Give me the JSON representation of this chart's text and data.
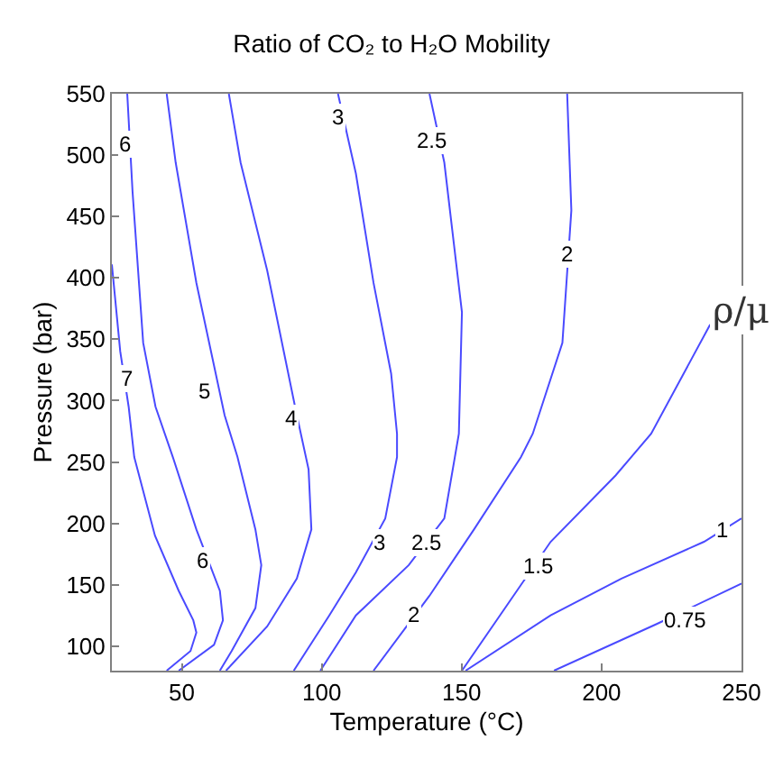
{
  "chart_data": {
    "type": "line",
    "title": "Ratio of CO₂ to H₂O Mobility",
    "xlabel": "Temperature (°C)",
    "ylabel": "Pressure (bar)",
    "xlim": [
      25,
      250
    ],
    "xticks": [
      50,
      100,
      150,
      200,
      250
    ],
    "ylim": [
      80,
      550
    ],
    "yticks": [
      100,
      150,
      200,
      250,
      300,
      350,
      400,
      450,
      500,
      550
    ],
    "marker": "none",
    "line_style": "solid",
    "series": [
      {
        "color": "#4a4aff",
        "x": [
          25,
          28,
          31,
          33,
          40.4,
          48.9,
          54.1,
          55.2,
          53.1,
          44.6
        ],
        "values": [
          411,
          340,
          295,
          254,
          190,
          145,
          121,
          111,
          96,
          80
        ]
      },
      {
        "color": "#4a4aff",
        "x": [
          30.5,
          32.4,
          36.2,
          40.6,
          46.8,
          55.2,
          63.6,
          64.7,
          61.5,
          48.9
        ],
        "values": [
          550,
          470,
          347,
          295,
          254,
          195,
          145,
          121,
          101,
          80
        ]
      },
      {
        "color": "#4a4aff",
        "x": [
          44.6,
          47.8,
          55.2,
          65.3,
          69.9,
          76.3,
          78.4,
          76.3,
          67.8,
          63.6
        ],
        "values": [
          550,
          494,
          396,
          288,
          254,
          195,
          166,
          131,
          96,
          80
        ]
      },
      {
        "color": "#4a4aff",
        "x": [
          66.8,
          71,
          80.5,
          91.1,
          95.3,
          96.3,
          91.1,
          80.5,
          65.8
        ],
        "values": [
          550,
          494,
          406,
          288,
          244,
          195,
          155,
          116,
          80
        ]
      },
      {
        "color": "#4a4aff",
        "x": [
          105.8,
          112.2,
          118.5,
          124.8,
          126.9,
          126.9,
          122.7,
          112.2,
          102.7,
          90
        ],
        "values": [
          550,
          485,
          396,
          322,
          273,
          254,
          204,
          160,
          125,
          80
        ]
      },
      {
        "color": "#4a4aff",
        "x": [
          138.5,
          143.8,
          150.1,
          149,
          143.8,
          131.1,
          112.2,
          99.5
        ],
        "values": [
          550,
          494,
          372,
          273,
          204,
          166,
          125,
          80
        ]
      },
      {
        "color": "#4a4aff",
        "x": [
          187.7,
          189.2,
          186,
          175.4,
          171.2,
          154.4,
          138.5,
          118.5
        ],
        "values": [
          550,
          455,
          347,
          273,
          254,
          195,
          141,
          80
        ]
      },
      {
        "color": "#4a4aff",
        "x": [
          238.8,
          217.7,
          205,
          181.8,
          150.1
        ],
        "values": [
          362,
          273,
          239,
          185,
          80
        ]
      },
      {
        "color": "#4a4aff",
        "x": [
          250,
          236.6,
          207.1,
          181.8,
          151.4
        ],
        "values": [
          204,
          185,
          155,
          125,
          80
        ]
      },
      {
        "color": "#4a4aff",
        "x": [
          250,
          219.7,
          183
        ],
        "values": [
          151,
          118,
          80
        ]
      }
    ],
    "annotations": [
      {
        "text": "7",
        "x": 30.3,
        "y": 318
      },
      {
        "text": "6",
        "x": 29.9,
        "y": 509
      },
      {
        "text": "6",
        "x": 57.3,
        "y": 170
      },
      {
        "text": "5",
        "x": 58.4,
        "y": 307
      },
      {
        "text": "4",
        "x": 88.9,
        "y": 285
      },
      {
        "text": "3",
        "x": 105.8,
        "y": 531
      },
      {
        "text": "3",
        "x": 120.6,
        "y": 185
      },
      {
        "text": "2.5",
        "x": 139.6,
        "y": 512
      },
      {
        "text": "2.5",
        "x": 137.5,
        "y": 185
      },
      {
        "text": "2",
        "x": 188,
        "y": 420
      },
      {
        "text": "2",
        "x": 133.3,
        "y": 125
      },
      {
        "text": "1.5",
        "x": 177.5,
        "y": 165
      },
      {
        "text": "1",
        "x": 243,
        "y": 194
      },
      {
        "text": "0.75",
        "x": 230.3,
        "y": 121
      },
      "ρ/μ"
    ]
  }
}
